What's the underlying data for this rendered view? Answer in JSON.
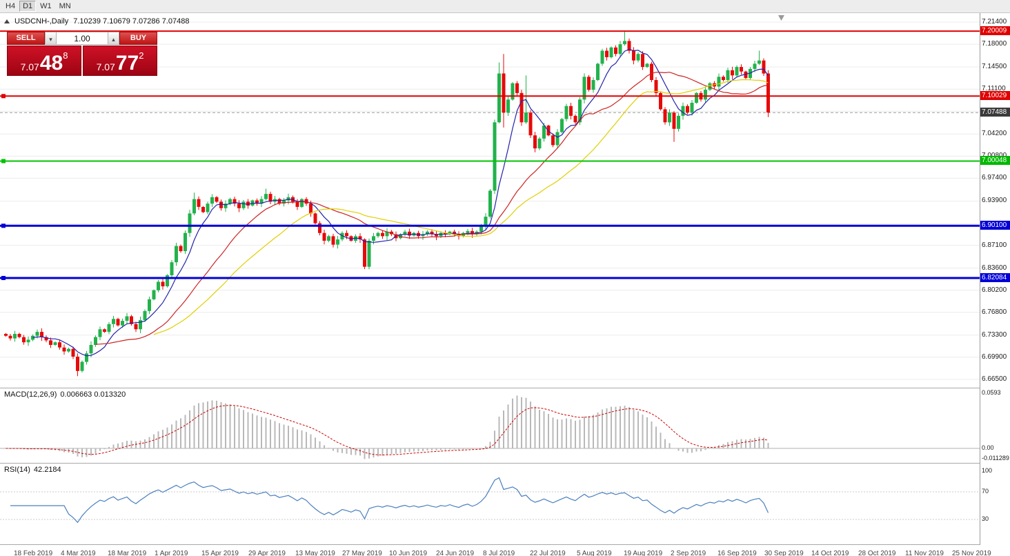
{
  "toolbar": {
    "timeframes": [
      "H4",
      "D1",
      "W1",
      "MN"
    ],
    "active": "D1"
  },
  "chart_data": {
    "type": "candlestick",
    "symbol": "USDCNH-",
    "timeframe": "Daily",
    "title": "USDCNH-,Daily",
    "ohlc_display": "7.10239 7.10679 7.07286 7.07488",
    "ylim": [
      6.665,
      7.214
    ],
    "up_color": "#22b24c",
    "down_color": "#e60a0a",
    "closes": [
      6.732,
      6.728,
      6.735,
      6.73,
      6.722,
      6.726,
      6.732,
      6.738,
      6.73,
      6.725,
      6.718,
      6.722,
      6.714,
      6.708,
      6.712,
      6.7,
      6.678,
      6.692,
      6.705,
      6.718,
      6.73,
      6.742,
      6.738,
      6.75,
      6.758,
      6.748,
      6.755,
      6.762,
      6.75,
      6.742,
      6.756,
      6.77,
      6.788,
      6.802,
      6.815,
      6.808,
      6.825,
      6.845,
      6.87,
      6.862,
      6.89,
      6.92,
      6.942,
      6.93,
      6.922,
      6.935,
      6.945,
      6.938,
      6.928,
      6.935,
      6.942,
      6.935,
      6.928,
      6.938,
      6.932,
      6.94,
      6.935,
      6.942,
      6.95,
      6.938,
      6.942,
      6.935,
      6.94,
      6.945,
      6.938,
      6.93,
      6.942,
      6.935,
      6.92,
      6.905,
      6.89,
      6.878,
      6.885,
      6.872,
      6.88,
      6.89,
      6.885,
      6.878,
      6.885,
      6.88,
      6.838,
      6.878,
      6.885,
      6.89,
      6.885,
      6.892,
      6.888,
      6.882,
      6.888,
      6.892,
      6.886,
      6.89,
      6.885,
      6.888,
      6.892,
      6.888,
      6.885,
      6.89,
      6.888,
      6.892,
      6.888,
      6.885,
      6.89,
      6.893,
      6.888,
      6.892,
      6.9,
      6.915,
      6.955,
      7.06,
      7.135,
      7.075,
      7.095,
      7.12,
      7.105,
      7.06,
      7.075,
      7.04,
      7.02,
      7.035,
      7.055,
      7.04,
      7.025,
      7.045,
      7.065,
      7.085,
      7.07,
      7.06,
      7.095,
      7.13,
      7.11,
      7.125,
      7.15,
      7.17,
      7.16,
      7.175,
      7.165,
      7.18,
      7.185,
      7.17,
      7.155,
      7.165,
      7.145,
      7.15,
      7.125,
      7.105,
      7.08,
      7.06,
      7.075,
      7.05,
      7.07,
      7.085,
      7.075,
      7.09,
      7.105,
      7.095,
      7.11,
      7.12,
      7.115,
      7.13,
      7.125,
      7.14,
      7.132,
      7.145,
      7.138,
      7.128,
      7.142,
      7.15,
      7.155,
      7.135,
      7.07488
    ],
    "spikes": [
      {
        "i": 16,
        "low": 6.67
      },
      {
        "i": 42,
        "high": 6.952
      },
      {
        "i": 58,
        "high": 6.958
      },
      {
        "i": 80,
        "low": 6.8345
      },
      {
        "i": 109,
        "low": 6.95
      },
      {
        "i": 110,
        "high": 7.152
      },
      {
        "i": 111,
        "high": 7.165,
        "low": 7.052
      },
      {
        "i": 116,
        "high": 7.132
      },
      {
        "i": 138,
        "high": 7.2005
      },
      {
        "i": 149,
        "low": 7.03
      },
      {
        "i": 168,
        "high": 7.17
      },
      {
        "i": 170,
        "low": 7.068
      }
    ],
    "moving_averages": [
      {
        "period": 7,
        "color": "#2222aa"
      },
      {
        "period": 21,
        "color": "#cc2222"
      },
      {
        "period": 34,
        "color": "#e0cf00"
      }
    ],
    "horizontal_lines": [
      {
        "price": 7.20009,
        "color": "#e00000",
        "width": 2
      },
      {
        "price": 7.10029,
        "color": "#e00000",
        "width": 2
      },
      {
        "price": 7.00048,
        "color": "#00c300",
        "width": 2
      },
      {
        "price": 6.901,
        "color": "#0000d6",
        "width": 3
      },
      {
        "price": 6.82084,
        "color": "#0000d6",
        "width": 3
      }
    ],
    "line_handles": [
      7.10029,
      7.00048,
      6.901,
      6.82084
    ],
    "current_price": 7.07488,
    "indicators": [
      {
        "name": "MACD",
        "label": "MACD(12,26,9)",
        "values": "0.006663 0.013320",
        "axis_labels": [
          "0.0593",
          "0.00",
          "-0.011289"
        ],
        "axis_max": 0.0593,
        "axis_min": -0.011289,
        "signal_color": "#cc0000",
        "histogram_color": "#b8b8b8"
      },
      {
        "name": "RSI",
        "label": "RSI(14)",
        "value": "42.2184",
        "axis_labels": [
          "100",
          "70",
          "30"
        ],
        "levels": [
          70,
          30
        ],
        "line_color": "#4a7fbf"
      }
    ]
  },
  "price_axis": {
    "grid": [
      7.214,
      7.18,
      7.145,
      7.111,
      7.077,
      7.042,
      7.008,
      6.974,
      6.939,
      6.904,
      6.871,
      6.836,
      6.802,
      6.768,
      6.733,
      6.699,
      6.665
    ],
    "ticks": [
      {
        "label": "7.21400",
        "price": 7.214
      },
      {
        "label": "7.18000",
        "price": 7.18
      },
      {
        "label": "7.14500",
        "price": 7.145
      },
      {
        "label": "7.11100",
        "price": 7.111
      },
      {
        "label": "7.04200",
        "price": 7.042
      },
      {
        "label": "7.00800",
        "price": 7.008
      },
      {
        "label": "6.97400",
        "price": 6.974
      },
      {
        "label": "6.93900",
        "price": 6.939
      },
      {
        "label": "6.87100",
        "price": 6.871
      },
      {
        "label": "6.83600",
        "price": 6.836
      },
      {
        "label": "6.80200",
        "price": 6.802
      },
      {
        "label": "6.76800",
        "price": 6.768
      },
      {
        "label": "6.73300",
        "price": 6.733
      },
      {
        "label": "6.69900",
        "price": 6.699
      },
      {
        "label": "6.66500",
        "price": 6.665
      }
    ],
    "badges": [
      {
        "label": "7.20009",
        "price": 7.20009,
        "bg": "#e00000"
      },
      {
        "label": "7.10029",
        "price": 7.10029,
        "bg": "#e00000"
      },
      {
        "label": "7.07488",
        "price": 7.07488,
        "bg": "#3a3a3a"
      },
      {
        "label": "7.00048",
        "price": 7.00048,
        "bg": "#00b800"
      },
      {
        "label": "6.90100",
        "price": 6.901,
        "bg": "#0000d6"
      },
      {
        "label": "6.82084",
        "price": 6.82084,
        "bg": "#0000d6"
      }
    ]
  },
  "trade_panel": {
    "sell_label": "SELL",
    "buy_label": "BUY",
    "volume": "1.00",
    "sell_price_prefix": "7.07",
    "sell_price_big": "48",
    "sell_price_sup": "8",
    "buy_price_prefix": "7.07",
    "buy_price_big": "77",
    "buy_price_sup": "2"
  },
  "time_axis": {
    "labels": [
      "18 Feb 2019",
      "4 Mar 2019",
      "18 Mar 2019",
      "1 Apr 2019",
      "15 Apr 2019",
      "29 Apr 2019",
      "13 May 2019",
      "27 May 2019",
      "10 Jun 2019",
      "24 Jun 2019",
      "8 Jul 2019",
      "22 Jul 2019",
      "5 Aug 2019",
      "19 Aug 2019",
      "2 Sep 2019",
      "16 Sep 2019",
      "30 Sep 2019",
      "14 Oct 2019",
      "28 Oct 2019",
      "11 Nov 2019",
      "25 Nov 2019"
    ]
  }
}
